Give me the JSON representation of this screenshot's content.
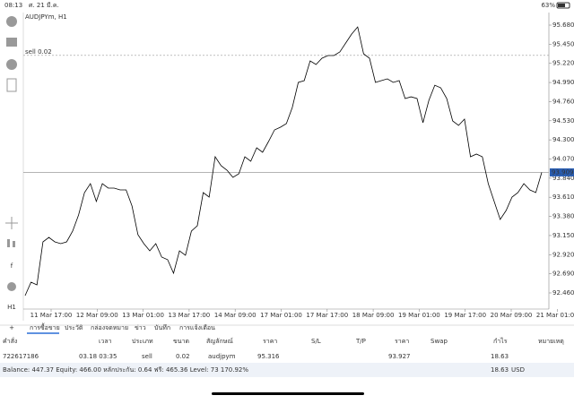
{
  "status_bar": {
    "time": "08:13",
    "date": "ศ. 21 มี.ค.",
    "battery": "63%"
  },
  "chart": {
    "type": "line",
    "title": "AUDJPYm, H1",
    "color": "#000000",
    "sell_line": {
      "label": "sell 0.02",
      "price": 95.316
    },
    "bid": {
      "value": 93.909,
      "label": "93.909"
    },
    "ylim": [
      92.266,
      95.831
    ],
    "yticks": [
      {
        "value": 95.68,
        "label": "95.680"
      },
      {
        "value": 95.45,
        "label": "95.450"
      },
      {
        "value": 95.22,
        "label": "95.220"
      },
      {
        "value": 94.99,
        "label": "94.990"
      },
      {
        "value": 94.76,
        "label": "94.760"
      },
      {
        "value": 94.53,
        "label": "94.530"
      },
      {
        "value": 94.3,
        "label": "94.300"
      },
      {
        "value": 94.07,
        "label": "94.070"
      },
      {
        "value": 93.84,
        "label": "93.840"
      },
      {
        "value": 93.61,
        "label": "93.610"
      },
      {
        "value": 93.38,
        "label": "93.380"
      },
      {
        "value": 93.15,
        "label": "93.150"
      },
      {
        "value": 92.92,
        "label": "92.920"
      },
      {
        "value": 92.69,
        "label": "92.690"
      },
      {
        "value": 92.46,
        "label": "92.460"
      }
    ],
    "categories": [
      "11 Mar 17:00",
      "12 Mar 09:00",
      "13 Mar 01:00",
      "13 Mar 17:00",
      "14 Mar 09:00",
      "17 Mar 01:00",
      "17 Mar 17:00",
      "18 Mar 09:00",
      "19 Mar 01:00",
      "19 Mar 17:00",
      "20 Mar 09:00",
      "21 Mar 01:00"
    ],
    "values": [
      92.428,
      92.589,
      92.557,
      93.074,
      93.128,
      93.074,
      93.052,
      93.074,
      93.203,
      93.397,
      93.666,
      93.774,
      93.559,
      93.774,
      93.72,
      93.72,
      93.698,
      93.698,
      93.505,
      93.16,
      93.052,
      92.966,
      93.052,
      92.891,
      92.859,
      92.697,
      92.966,
      92.912,
      93.203,
      93.268,
      93.666,
      93.612,
      94.097,
      93.989,
      93.935,
      93.849,
      93.892,
      94.097,
      94.043,
      94.205,
      94.151,
      94.28,
      94.42,
      94.452,
      94.495,
      94.689,
      94.991,
      95.012,
      95.249,
      95.206,
      95.282,
      95.314,
      95.314,
      95.357,
      95.465,
      95.572,
      95.658,
      95.335,
      95.282,
      94.991,
      95.012,
      95.034,
      94.991,
      95.012,
      94.797,
      94.818,
      94.797,
      94.506,
      94.775,
      94.958,
      94.926,
      94.797,
      94.528,
      94.474,
      94.549,
      94.097,
      94.129,
      94.097,
      93.774,
      93.559,
      93.343,
      93.451,
      93.612,
      93.666,
      93.774,
      93.698,
      93.666,
      93.909
    ]
  },
  "tabs": [
    "การซื้อขาย",
    "ประวัติ",
    "กล่องจดหมาย",
    "ข่าว",
    "บันทึก",
    "การแจ้งเตือน"
  ],
  "table": {
    "headers": [
      "คำสั่ง",
      "เวลา",
      "ประเภท",
      "ขนาด",
      "สัญลักษณ์",
      "ราคา",
      "S/L",
      "T/P",
      "ราคา",
      "Swap",
      "กำไร",
      "หมายเหตุ"
    ],
    "row": {
      "order": "722617186",
      "time": "03.18 03:35",
      "type": "sell",
      "size": "0.02",
      "symbol": "audjpym",
      "open_price": "95.316",
      "current_price": "93.927",
      "profit": "18.63"
    },
    "summary": {
      "text": "Balance: 447.37 Equity: 466.00 หลักประกัน: 0.64 ฟรี: 465.36 Level: 73 170.92%",
      "profit": "18.63",
      "currency": "USD"
    }
  }
}
